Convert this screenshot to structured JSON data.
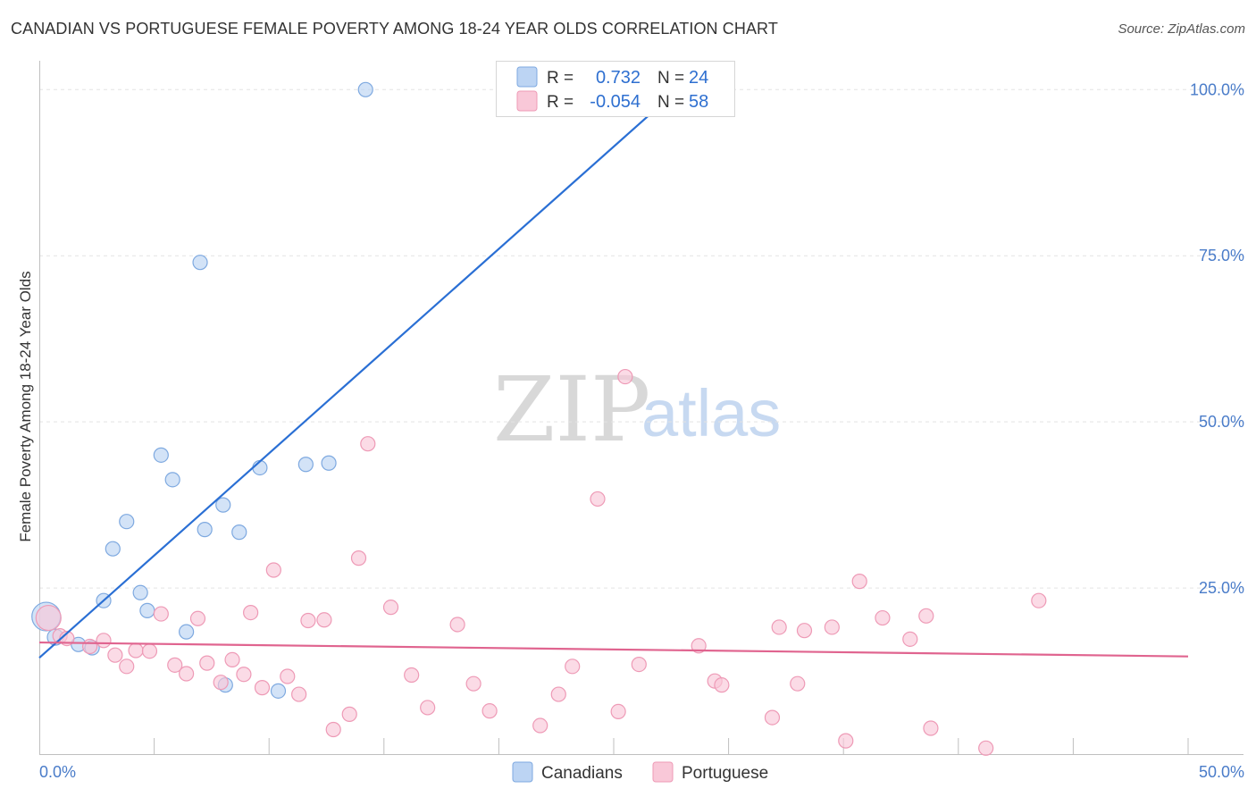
{
  "header": {
    "title": "CANADIAN VS PORTUGUESE FEMALE POVERTY AMONG 18-24 YEAR OLDS CORRELATION CHART",
    "source": "Source: ZipAtlas.com"
  },
  "watermark": {
    "zip": "ZIP",
    "atlas": "atlas"
  },
  "colors": {
    "canadians_fill": "#bcd4f3",
    "canadians_stroke": "#7ea9e0",
    "canadians_line": "#2a6fd4",
    "portuguese_fill": "#f9c8d8",
    "portuguese_stroke": "#ee9ab6",
    "portuguese_line": "#e0648f",
    "tick_label": "#4a7cc9"
  },
  "chart_data": {
    "type": "scatter",
    "title": "CANADIAN VS PORTUGUESE FEMALE POVERTY AMONG 18-24 YEAR OLDS CORRELATION CHART",
    "xlabel": "",
    "ylabel": "Female Poverty Among 18-24 Year Olds",
    "xlim": [
      0,
      50
    ],
    "ylim": [
      0,
      103
    ],
    "x_tick_labels": [
      "0.0%",
      "50.0%"
    ],
    "x_tick_values": [
      0,
      50
    ],
    "y_ticks": [
      {
        "value": 25,
        "label": "25.0%"
      },
      {
        "value": 50,
        "label": "50.0%"
      },
      {
        "value": 75,
        "label": "75.0%"
      },
      {
        "value": 100,
        "label": "100.0%"
      }
    ],
    "legend": {
      "rows": [
        {
          "r_label": "R =",
          "r_value": "0.732",
          "n_label": "N =",
          "n_value": "24"
        },
        {
          "r_label": "R =",
          "r_value": "-0.054",
          "n_label": "N =",
          "n_value": "58"
        }
      ],
      "bottom": [
        "Canadians",
        "Portuguese"
      ]
    },
    "series": [
      {
        "name": "Canadians",
        "r": 0.732,
        "n": 24,
        "trend": {
          "x": [
            0,
            28.6
          ],
          "y": [
            14.5,
            102.5
          ]
        },
        "points": [
          [
            0.3,
            20.7,
            16
          ],
          [
            0.7,
            17.6,
            9
          ],
          [
            1.7,
            16.5,
            8
          ],
          [
            2.3,
            16.0,
            8
          ],
          [
            2.8,
            23.1,
            8
          ],
          [
            3.2,
            30.9,
            8
          ],
          [
            3.8,
            35.0,
            8
          ],
          [
            4.4,
            24.3,
            8
          ],
          [
            4.7,
            21.6,
            8
          ],
          [
            5.3,
            45.0,
            8
          ],
          [
            5.8,
            41.3,
            8
          ],
          [
            6.4,
            18.4,
            8
          ],
          [
            7.0,
            74.0,
            8
          ],
          [
            7.2,
            33.8,
            8
          ],
          [
            8.0,
            37.5,
            8
          ],
          [
            8.1,
            10.4,
            8
          ],
          [
            8.7,
            33.4,
            8
          ],
          [
            9.6,
            43.1,
            8
          ],
          [
            10.4,
            9.5,
            8
          ],
          [
            11.6,
            43.6,
            8
          ],
          [
            12.6,
            43.8,
            8
          ],
          [
            14.2,
            100.0,
            8
          ]
        ]
      },
      {
        "name": "Portuguese",
        "r": -0.054,
        "n": 58,
        "trend": {
          "x": [
            0,
            50
          ],
          "y": [
            16.8,
            14.7
          ]
        },
        "points": [
          [
            0.4,
            20.5,
            14
          ],
          [
            0.9,
            17.8,
            8
          ],
          [
            1.2,
            17.4,
            8
          ],
          [
            2.2,
            16.2,
            8
          ],
          [
            2.8,
            17.1,
            8
          ],
          [
            3.3,
            14.9,
            8
          ],
          [
            3.8,
            13.2,
            8
          ],
          [
            4.2,
            15.6,
            8
          ],
          [
            4.8,
            15.5,
            8
          ],
          [
            5.3,
            21.1,
            8
          ],
          [
            5.9,
            13.4,
            8
          ],
          [
            6.4,
            12.1,
            8
          ],
          [
            6.9,
            20.4,
            8
          ],
          [
            7.3,
            13.7,
            8
          ],
          [
            7.9,
            10.8,
            8
          ],
          [
            8.4,
            14.2,
            8
          ],
          [
            8.9,
            12.0,
            8
          ],
          [
            9.2,
            21.3,
            8
          ],
          [
            9.7,
            10.0,
            8
          ],
          [
            10.2,
            27.7,
            8
          ],
          [
            10.8,
            11.7,
            8
          ],
          [
            11.3,
            9.0,
            8
          ],
          [
            11.7,
            20.1,
            8
          ],
          [
            12.4,
            20.2,
            8
          ],
          [
            12.8,
            3.7,
            8
          ],
          [
            13.5,
            6.0,
            8
          ],
          [
            13.9,
            29.5,
            8
          ],
          [
            14.3,
            46.7,
            8
          ],
          [
            15.3,
            22.1,
            8
          ],
          [
            16.2,
            11.9,
            8
          ],
          [
            16.9,
            7.0,
            8
          ],
          [
            18.2,
            19.5,
            8
          ],
          [
            18.9,
            10.6,
            8
          ],
          [
            19.6,
            6.5,
            8
          ],
          [
            21.8,
            4.3,
            8
          ],
          [
            22.6,
            9.0,
            8
          ],
          [
            23.2,
            13.2,
            8
          ],
          [
            24.3,
            38.4,
            8
          ],
          [
            25.2,
            6.4,
            8
          ],
          [
            25.5,
            56.8,
            8
          ],
          [
            26.1,
            13.5,
            8
          ],
          [
            28.7,
            16.3,
            8
          ],
          [
            29.4,
            11.0,
            8
          ],
          [
            29.7,
            10.4,
            8
          ],
          [
            31.9,
            5.5,
            8
          ],
          [
            32.2,
            19.1,
            8
          ],
          [
            33.0,
            10.6,
            8
          ],
          [
            33.3,
            18.6,
            8
          ],
          [
            34.5,
            19.1,
            8
          ],
          [
            35.1,
            2.0,
            8
          ],
          [
            35.7,
            26.0,
            8
          ],
          [
            36.7,
            20.5,
            8
          ],
          [
            37.9,
            17.3,
            8
          ],
          [
            38.6,
            20.8,
            8
          ],
          [
            38.8,
            3.9,
            8
          ],
          [
            41.2,
            0.9,
            8
          ],
          [
            43.5,
            23.1,
            8
          ]
        ]
      }
    ]
  }
}
